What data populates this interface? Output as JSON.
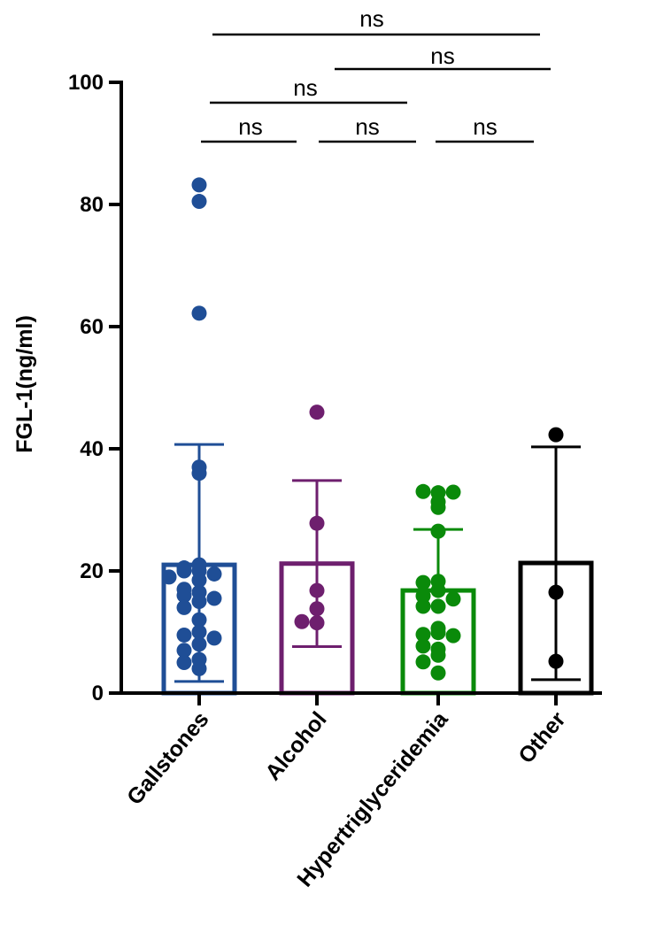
{
  "chart_data": {
    "type": "bar",
    "title": "",
    "xlabel": "",
    "ylabel": "FGL-1(ng/ml)",
    "ylim": [
      0,
      100
    ],
    "yticks": [
      "0",
      "20",
      "40",
      "60",
      "80",
      "100"
    ],
    "grid": false,
    "categories": [
      "Gallstones",
      "Alcohol",
      "Hypertriglyceridemia",
      "Other"
    ],
    "colors": [
      "#1f4e96",
      "#6e1f6e",
      "#0a8a0a",
      "#000000"
    ],
    "means": [
      21.0,
      21.2,
      16.8,
      21.3
    ],
    "error_upper": [
      40.7,
      34.8,
      26.8,
      40.3
    ],
    "error_lower": [
      1.9,
      7.6,
      16.8,
      2.2
    ],
    "points": [
      [
        83.2,
        80.5,
        62.2,
        37.0,
        36.0,
        21.0,
        20.5,
        20.0,
        20.0,
        19.5,
        19.0,
        18.5,
        17.0,
        16.5,
        16.0,
        15.5,
        15.0,
        14.0,
        12.0,
        10.0,
        9.5,
        9.0,
        8.0,
        7.0,
        5.5,
        5.0,
        4.0
      ],
      [
        46.0,
        27.8,
        16.8,
        13.8,
        11.5,
        11.7
      ],
      [
        32.8,
        31.3,
        33.0,
        32.9,
        30.4,
        26.5,
        18.3,
        18.1,
        16.8,
        15.9,
        15.4,
        14.2,
        14.2,
        10.6,
        9.9,
        9.6,
        9.4,
        7.2,
        7.7,
        6.2,
        5.1,
        3.3
      ],
      [
        42.3,
        16.5,
        5.2
      ]
    ],
    "comparisons": [
      {
        "groups": [
          "Gallstones",
          "Other"
        ],
        "label": "ns"
      },
      {
        "groups": [
          "Alcohol",
          "Other"
        ],
        "label": "ns"
      },
      {
        "groups": [
          "Gallstones",
          "Hypertriglyceridemia"
        ],
        "label": "ns"
      },
      {
        "groups": [
          "Gallstones",
          "Alcohol"
        ],
        "label": "ns"
      },
      {
        "groups": [
          "Alcohol",
          "Hypertriglyceridemia"
        ],
        "label": "ns"
      },
      {
        "groups": [
          "Hypertriglyceridemia",
          "Other"
        ],
        "label": "ns"
      }
    ]
  }
}
